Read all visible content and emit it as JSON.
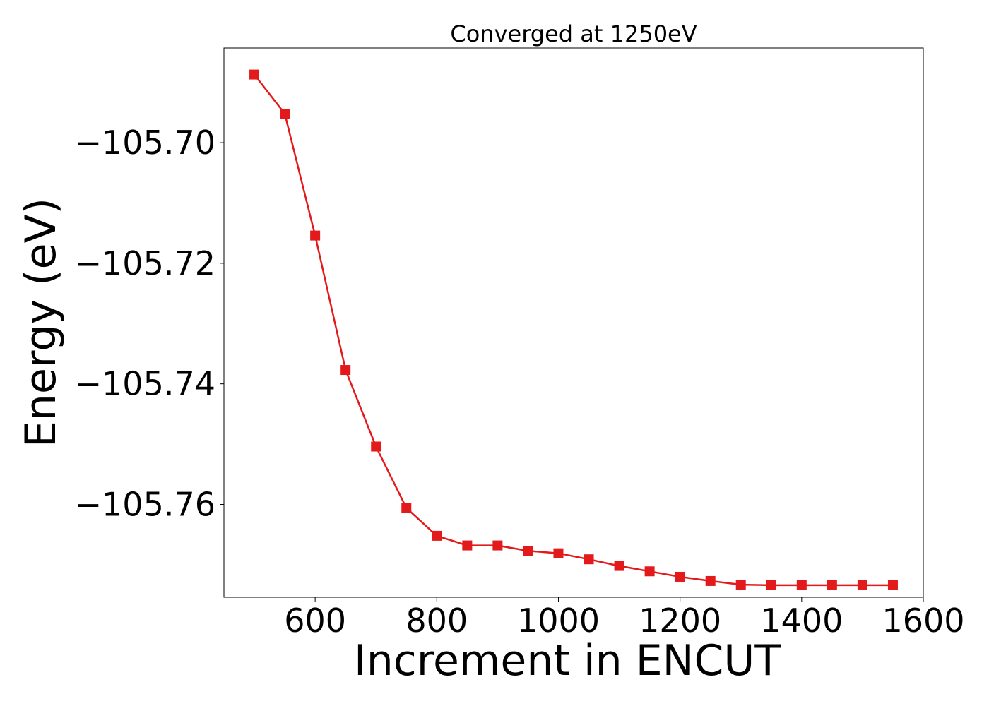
{
  "chart_data": {
    "type": "line",
    "title": "Converged at 1250eV",
    "xlabel": "Increment in ENCUT",
    "ylabel": "Energy (eV)",
    "xlim": [
      450,
      1600
    ],
    "ylim": [
      -105.7754,
      -105.6843
    ],
    "xticks": [
      600,
      800,
      1000,
      1200,
      1400,
      1600
    ],
    "xtick_labels": [
      "600",
      "800",
      "1000",
      "1200",
      "1400",
      "1600"
    ],
    "yticks": [
      -105.7,
      -105.72,
      -105.74,
      -105.76
    ],
    "ytick_labels": [
      "−105.70",
      "−105.72",
      "−105.74",
      "−105.76"
    ],
    "grid": false,
    "legend": false,
    "series": [
      {
        "color": "#e31a1c",
        "marker": "square",
        "x": [
          500,
          550,
          600,
          650,
          700,
          750,
          800,
          850,
          900,
          950,
          1000,
          1050,
          1100,
          1150,
          1200,
          1250,
          1300,
          1350,
          1400,
          1450,
          1500,
          1550
        ],
        "y": [
          -105.6887,
          -105.6952,
          -105.7154,
          -105.7377,
          -105.7504,
          -105.7606,
          -105.7652,
          -105.7668,
          -105.7668,
          -105.7677,
          -105.7681,
          -105.7691,
          -105.7702,
          -105.7711,
          -105.772,
          -105.7727,
          -105.7733,
          -105.7734,
          -105.7734,
          -105.7734,
          -105.7734,
          -105.7734
        ]
      }
    ]
  }
}
